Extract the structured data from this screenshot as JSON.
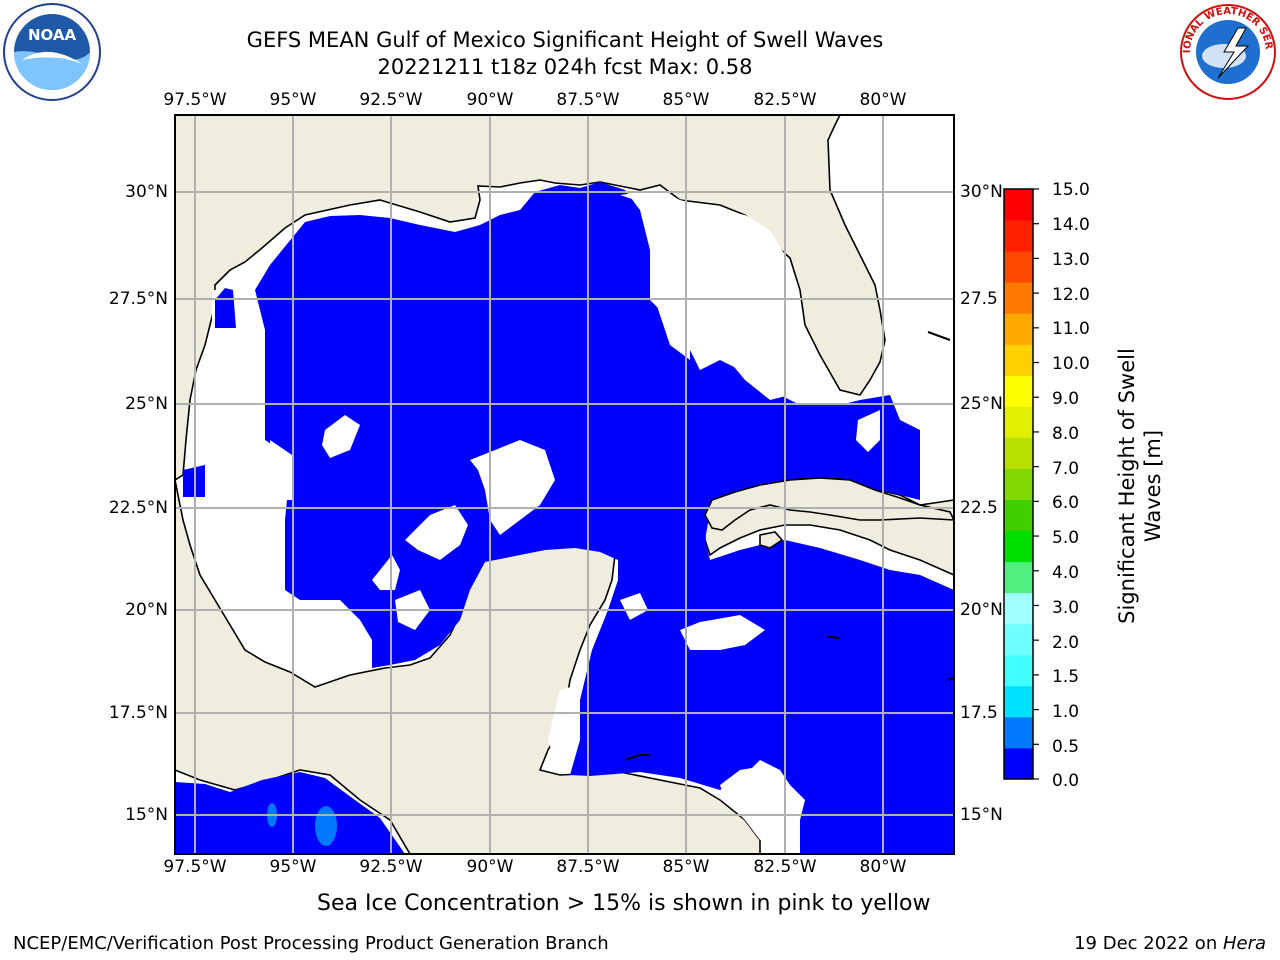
{
  "title": {
    "line1": "GEFS MEAN Gulf of Mexico Significant Height of Swell Waves",
    "line2": "20221211 t18z 024h fcst   Max: 0.58"
  },
  "lon_ticks": [
    "97.5°W",
    "95°W",
    "92.5°W",
    "90°W",
    "87.5°W",
    "85°W",
    "82.5°W",
    "80°W"
  ],
  "lat_ticks": [
    "30°N",
    "27.5°N",
    "25°N",
    "22.5°N",
    "20°N",
    "17.5°N",
    "15°N"
  ],
  "lat_ticks_right": [
    "30°N",
    "27.5",
    "25°N",
    "22.5",
    "20°N",
    "17.5",
    "15°N"
  ],
  "map": {
    "lon_range": [
      -98,
      -78.2
    ],
    "lat_range": [
      14,
      31.8
    ],
    "land_color": "#efedde",
    "sea_fill_color": "#0000ff",
    "gridline_color": "#b0b0b0"
  },
  "colorbar": {
    "label_line1": "Significant Height of Swell",
    "label_line2": "Waves [m]",
    "levels": [
      "15.0",
      "14.0",
      "13.0",
      "12.0",
      "11.0",
      "10.0",
      "9.0",
      "8.0",
      "7.0",
      "6.0",
      "5.0",
      "4.0",
      "3.0",
      "2.0",
      "1.5",
      "1.0",
      "0.5",
      "0.0"
    ],
    "colors_bottom_to_top": [
      "#0000ff",
      "#0078ff",
      "#00e0ff",
      "#40ffff",
      "#70ffff",
      "#a0ffff",
      "#50f080",
      "#00e000",
      "#40d000",
      "#80d800",
      "#b8e000",
      "#e0f000",
      "#ffff00",
      "#ffd000",
      "#ffa800",
      "#ff7800",
      "#ff4800",
      "#ff2000",
      "#ff0000"
    ]
  },
  "note": "Sea Ice Concentration > 15% is shown in pink to yellow",
  "footer": {
    "left": "NCEP/EMC/Verification Post Processing Product Generation Branch",
    "right_prefix": "19 Dec 2022 on ",
    "right_host": "Hera"
  },
  "logos": {
    "noaa_text": "NOAA",
    "nws_text": "NATIONAL WEATHER SERVICE"
  }
}
